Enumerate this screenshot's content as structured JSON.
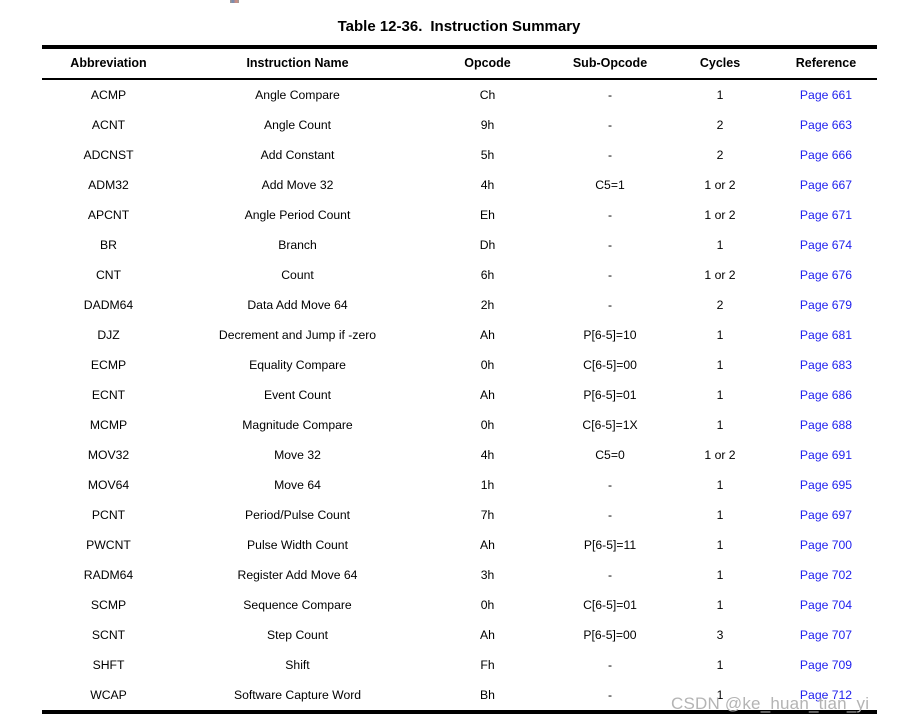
{
  "page": {
    "title_prefix": "Table 12-36.",
    "title_main": "Instruction Summary",
    "watermark": "CSDN @ke_huan_tian_yi"
  },
  "colors": {
    "link": "#1e1eee",
    "text": "#000000",
    "watermark": "#b4b4b4",
    "rule": "#000000"
  },
  "table": {
    "columns": [
      "Abbreviation",
      "Instruction Name",
      "Opcode",
      "Sub-Opcode",
      "Cycles",
      "Reference"
    ],
    "rows": [
      {
        "abbreviation": "ACMP",
        "instruction_name": "Angle Compare",
        "opcode": "Ch",
        "sub_opcode": "-",
        "cycles": "1",
        "reference": "Page 661"
      },
      {
        "abbreviation": "ACNT",
        "instruction_name": "Angle Count",
        "opcode": "9h",
        "sub_opcode": "-",
        "cycles": "2",
        "reference": "Page 663"
      },
      {
        "abbreviation": "ADCNST",
        "instruction_name": "Add Constant",
        "opcode": "5h",
        "sub_opcode": "-",
        "cycles": "2",
        "reference": "Page 666"
      },
      {
        "abbreviation": "ADM32",
        "instruction_name": "Add Move 32",
        "opcode": "4h",
        "sub_opcode": "C5=1",
        "cycles": "1 or 2",
        "reference": "Page 667"
      },
      {
        "abbreviation": "APCNT",
        "instruction_name": "Angle Period Count",
        "opcode": "Eh",
        "sub_opcode": "-",
        "cycles": "1 or 2",
        "reference": "Page 671"
      },
      {
        "abbreviation": "BR",
        "instruction_name": "Branch",
        "opcode": "Dh",
        "sub_opcode": "-",
        "cycles": "1",
        "reference": "Page 674"
      },
      {
        "abbreviation": "CNT",
        "instruction_name": "Count",
        "opcode": "6h",
        "sub_opcode": "-",
        "cycles": "1 or 2",
        "reference": "Page 676"
      },
      {
        "abbreviation": "DADM64",
        "instruction_name": "Data Add Move 64",
        "opcode": "2h",
        "sub_opcode": "-",
        "cycles": "2",
        "reference": "Page 679"
      },
      {
        "abbreviation": "DJZ",
        "instruction_name": "Decrement and Jump if -zero",
        "opcode": "Ah",
        "sub_opcode": "P[6-5]=10",
        "cycles": "1",
        "reference": "Page 681"
      },
      {
        "abbreviation": "ECMP",
        "instruction_name": "Equality Compare",
        "opcode": "0h",
        "sub_opcode": "C[6-5]=00",
        "cycles": "1",
        "reference": "Page 683"
      },
      {
        "abbreviation": "ECNT",
        "instruction_name": "Event Count",
        "opcode": "Ah",
        "sub_opcode": "P[6-5]=01",
        "cycles": "1",
        "reference": "Page 686"
      },
      {
        "abbreviation": "MCMP",
        "instruction_name": "Magnitude Compare",
        "opcode": "0h",
        "sub_opcode": "C[6-5]=1X",
        "cycles": "1",
        "reference": "Page 688"
      },
      {
        "abbreviation": "MOV32",
        "instruction_name": "Move 32",
        "opcode": "4h",
        "sub_opcode": "C5=0",
        "cycles": "1 or 2",
        "reference": "Page 691"
      },
      {
        "abbreviation": "MOV64",
        "instruction_name": "Move 64",
        "opcode": "1h",
        "sub_opcode": "-",
        "cycles": "1",
        "reference": "Page 695"
      },
      {
        "abbreviation": "PCNT",
        "instruction_name": "Period/Pulse Count",
        "opcode": "7h",
        "sub_opcode": "-",
        "cycles": "1",
        "reference": "Page 697"
      },
      {
        "abbreviation": "PWCNT",
        "instruction_name": "Pulse Width Count",
        "opcode": "Ah",
        "sub_opcode": "P[6-5]=11",
        "cycles": "1",
        "reference": "Page 700"
      },
      {
        "abbreviation": "RADM64",
        "instruction_name": "Register Add Move 64",
        "opcode": "3h",
        "sub_opcode": "-",
        "cycles": "1",
        "reference": "Page 702"
      },
      {
        "abbreviation": "SCMP",
        "instruction_name": "Sequence Compare",
        "opcode": "0h",
        "sub_opcode": "C[6-5]=01",
        "cycles": "1",
        "reference": "Page 704"
      },
      {
        "abbreviation": "SCNT",
        "instruction_name": "Step Count",
        "opcode": "Ah",
        "sub_opcode": "P[6-5]=00",
        "cycles": "3",
        "reference": "Page 707"
      },
      {
        "abbreviation": "SHFT",
        "instruction_name": "Shift",
        "opcode": "Fh",
        "sub_opcode": "-",
        "cycles": "1",
        "reference": "Page 709"
      },
      {
        "abbreviation": "WCAP",
        "instruction_name": "Software Capture Word",
        "opcode": "Bh",
        "sub_opcode": "-",
        "cycles": "1",
        "reference": "Page 712"
      }
    ]
  }
}
